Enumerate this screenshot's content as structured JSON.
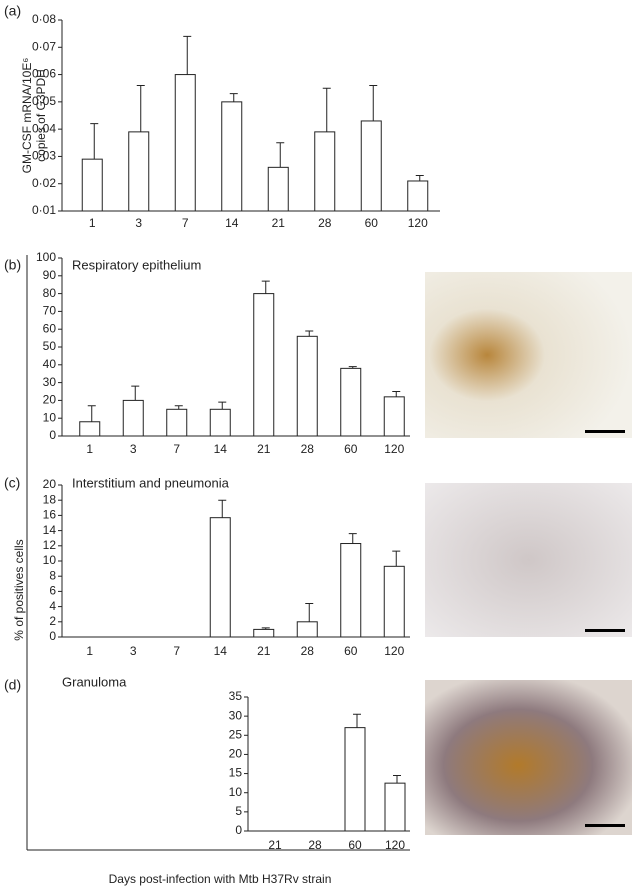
{
  "chart_data": [
    {
      "type": "bar",
      "panel": "(a)",
      "ylabel": [
        "GM-CSF mRNA/10E⁶",
        "copies of G3PDH"
      ],
      "categories": [
        "1",
        "3",
        "7",
        "14",
        "21",
        "28",
        "60",
        "120"
      ],
      "values": [
        0.029,
        0.039,
        0.06,
        0.05,
        0.026,
        0.039,
        0.043,
        0.021
      ],
      "errors": [
        0.013,
        0.017,
        0.014,
        0.003,
        0.009,
        0.016,
        0.013,
        0.002
      ],
      "ylim": [
        0.01,
        0.08
      ],
      "yticks": [
        {
          "value": 0.01,
          "label": "0·01"
        },
        {
          "value": 0.02,
          "label": "0·02"
        },
        {
          "value": 0.03,
          "label": "0·03"
        },
        {
          "value": 0.04,
          "label": "0·04"
        },
        {
          "value": 0.05,
          "label": "0·05"
        },
        {
          "value": 0.06,
          "label": "0·06"
        },
        {
          "value": 0.07,
          "label": "0·07"
        },
        {
          "value": 0.08,
          "label": "0·08"
        }
      ],
      "color": "#ffffff"
    },
    {
      "type": "bar",
      "panel": "(b)",
      "title": "Respiratory epithelium",
      "categories": [
        "1",
        "3",
        "7",
        "14",
        "21",
        "28",
        "60",
        "120"
      ],
      "values": [
        8,
        20,
        15,
        15,
        80,
        56,
        38,
        22
      ],
      "errors": [
        9,
        8,
        2,
        4,
        7,
        3,
        1,
        3
      ],
      "ylim": [
        0,
        100
      ],
      "yticks": [
        0,
        10,
        20,
        30,
        40,
        50,
        60,
        70,
        80,
        90,
        100
      ],
      "color": "#ffffff"
    },
    {
      "type": "bar",
      "panel": "(c)",
      "title": "Interstitium and pneumonia",
      "ylabel": [
        "% of positives cells"
      ],
      "categories": [
        "1",
        "3",
        "7",
        "14",
        "21",
        "28",
        "60",
        "120"
      ],
      "values": [
        0,
        0,
        0,
        15.7,
        1,
        2,
        12.3,
        9.3
      ],
      "errors": [
        null,
        null,
        null,
        2.3,
        0.2,
        2.4,
        1.3,
        2
      ],
      "ylim": [
        0,
        20
      ],
      "yticks": [
        0,
        2,
        4,
        6,
        8,
        10,
        12,
        14,
        16,
        18,
        20
      ],
      "color": "#ffffff"
    },
    {
      "type": "bar",
      "panel": "(d)",
      "title": "Granuloma",
      "categories": [
        "21",
        "28",
        "60",
        "120"
      ],
      "values": [
        0,
        0,
        27,
        12.5
      ],
      "errors": [
        null,
        null,
        3.5,
        2
      ],
      "ylim": [
        0,
        35
      ],
      "yticks": [
        0,
        5,
        10,
        15,
        20,
        25,
        30,
        35
      ],
      "color": "#ffffff",
      "xlabel": "Days post-infection with Mtb H37Rv strain"
    }
  ]
}
